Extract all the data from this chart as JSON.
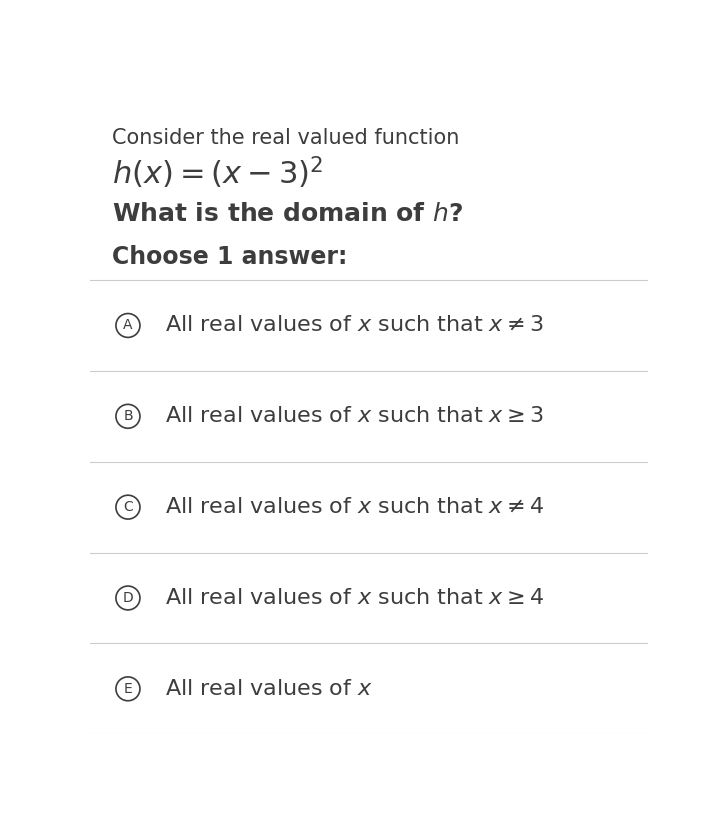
{
  "background_color": "#ffffff",
  "text_color": "#3d3d3d",
  "title_line1": "Consider the real valued function",
  "title_line2": "$h(x) = (x - 3)^2$",
  "question": "What is the domain of $h$?",
  "instruction": "Choose 1 answer:",
  "options": [
    {
      "label": "A",
      "text": "All real values of $x$ such that $x \\neq 3$"
    },
    {
      "label": "B",
      "text": "All real values of $x$ such that $x \\geq 3$"
    },
    {
      "label": "C",
      "text": "All real values of $x$ such that $x \\neq 4$"
    },
    {
      "label": "D",
      "text": "All real values of $x$ such that $x \\geq 4$"
    },
    {
      "label": "E",
      "text": "All real values of $x$"
    }
  ],
  "divider_color": "#cccccc",
  "circle_color": "#3d3d3d",
  "option_font_size": 16,
  "header_font_size_1": 15,
  "header_font_size_2": 22,
  "question_font_size": 18,
  "instruction_font_size": 17
}
